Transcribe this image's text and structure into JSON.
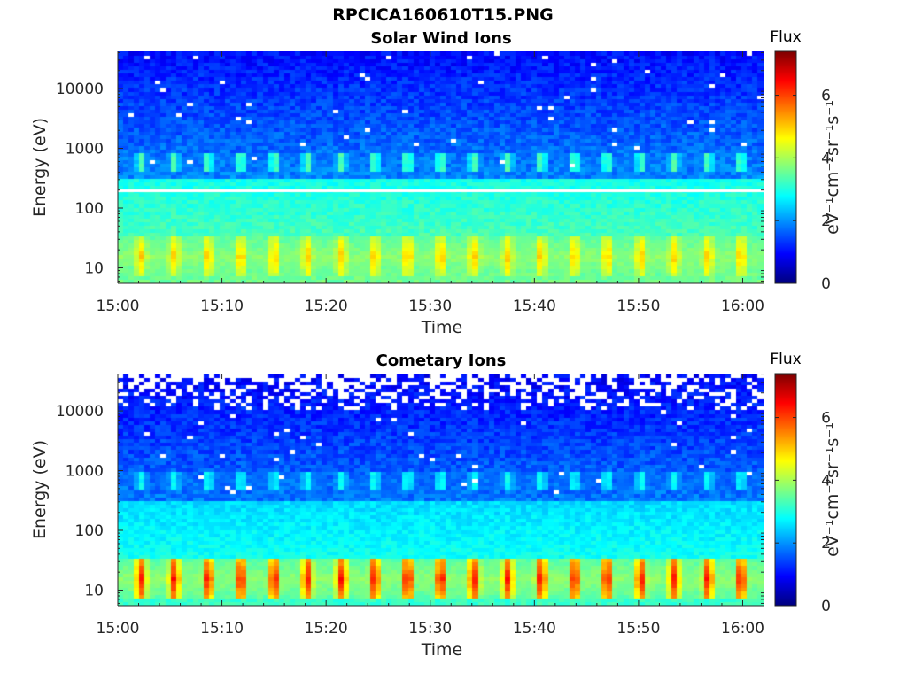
{
  "figure_title": "RPCICA160610T15.PNG",
  "chart_data": [
    {
      "type": "heatmap",
      "title": "Solar Wind Ions",
      "xlabel": "Time",
      "ylabel": "Energy (eV)",
      "x_ticks": [
        "15:00",
        "15:10",
        "15:20",
        "15:30",
        "15:40",
        "15:50",
        "16:00"
      ],
      "y_ticks": [
        "10",
        "100",
        "1000",
        "10000"
      ],
      "y_scale": "log",
      "x_range": [
        "15:00",
        "16:02"
      ],
      "y_range": [
        5.5,
        42000
      ],
      "colorbar": {
        "title": "Flux",
        "label": "eV⁻¹cm⁻²sr⁻¹s⁻¹",
        "ticks": [
          "0",
          "2",
          "4",
          "6"
        ],
        "range": [
          0,
          7.4
        ],
        "colormap": "jet"
      },
      "features": {
        "low_energy_band_eV": [
          8,
          30
        ],
        "low_band_peak_flux": 4.8,
        "mid_energy_band_eV": [
          400,
          900
        ],
        "mid_band_peak_flux": 3.3,
        "background_flux_high_energy": 1.0,
        "background_flux_below_200eV": 2.9,
        "gap_line_energy_eV": 200,
        "burst_period_min": 3.2
      }
    },
    {
      "type": "heatmap",
      "title": "Cometary Ions",
      "xlabel": "Time",
      "ylabel": "Energy (eV)",
      "x_ticks": [
        "15:00",
        "15:10",
        "15:20",
        "15:30",
        "15:40",
        "15:50",
        "16:00"
      ],
      "y_ticks": [
        "10",
        "100",
        "1000",
        "10000"
      ],
      "y_scale": "log",
      "x_range": [
        "15:00",
        "16:02"
      ],
      "y_range": [
        5.5,
        42000
      ],
      "colorbar": {
        "title": "Flux",
        "label": "eV⁻¹cm⁻²sr⁻¹s⁻¹",
        "ticks": [
          "0",
          "2",
          "4",
          "6"
        ],
        "range": [
          0,
          7.4
        ],
        "colormap": "jet"
      },
      "features": {
        "low_energy_band_eV": [
          8,
          30
        ],
        "low_band_peak_flux": 6.2,
        "mid_energy_band_eV": [
          450,
          1000
        ],
        "mid_band_peak_flux": 2.8,
        "background_flux_high_energy": 0.9,
        "background_flux_below_200eV": 2.5,
        "missing_data_above_eV": 10000,
        "burst_period_min": 3.2
      }
    }
  ]
}
